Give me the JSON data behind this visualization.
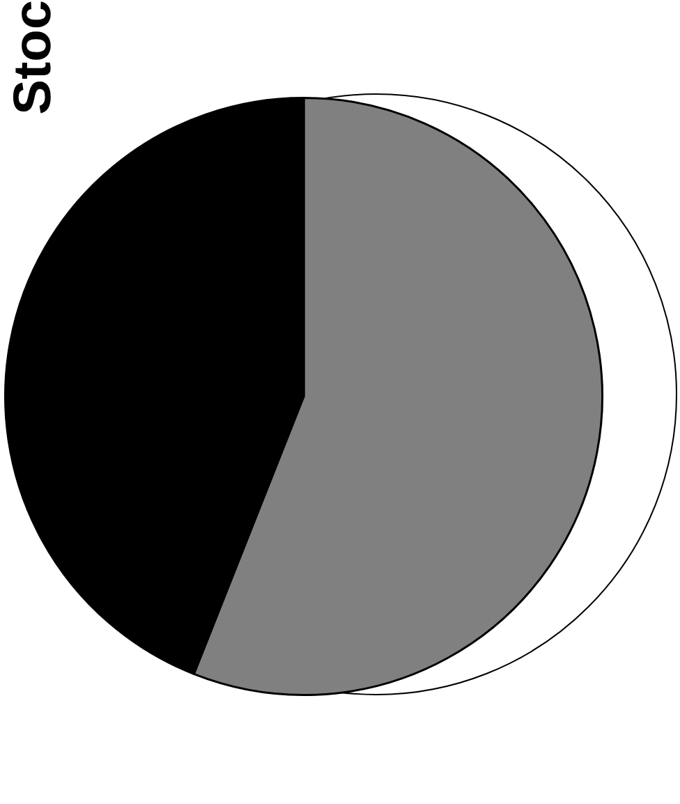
{
  "chart_data": {
    "type": "pie",
    "title": "Stoc",
    "categories": [
      null,
      null
    ],
    "values": [
      56,
      44
    ],
    "colors": [
      "#808080",
      "#000000"
    ],
    "legend": false
  }
}
